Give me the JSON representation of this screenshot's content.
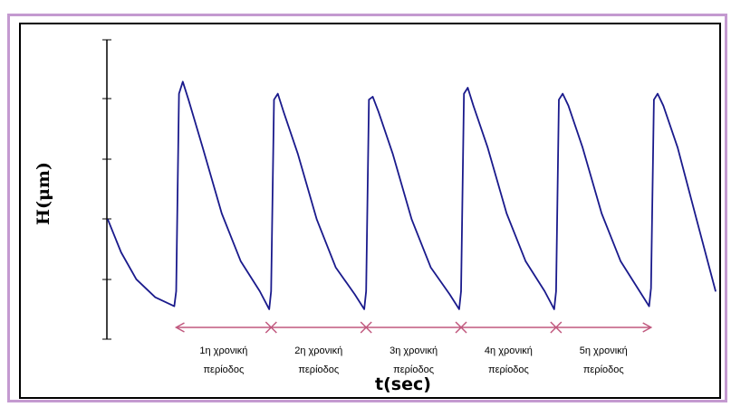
{
  "chart_data": {
    "type": "line",
    "title": "",
    "xlabel": "t(sec)",
    "ylabel": "Η(μm)",
    "line_color": "#1a1a8c",
    "arrow_color": "#c0587e",
    "x_unit": "periods",
    "xlim": [
      0,
      6.4
    ],
    "ylim": [
      0,
      5
    ],
    "grid": false,
    "series": [
      {
        "x": [
          0,
          0.14,
          0.3,
          0.5,
          0.7,
          0.72,
          0.75,
          0.79,
          0.85,
          1.0,
          1.2,
          1.4,
          1.6,
          1.7,
          1.72,
          1.75,
          1.79,
          1.85,
          2.0,
          2.2,
          2.4,
          2.6,
          2.7,
          2.72,
          2.75,
          2.79,
          2.85,
          3.0,
          3.2,
          3.4,
          3.6,
          3.7,
          3.72,
          3.75,
          3.79,
          3.85,
          4.0,
          4.2,
          4.4,
          4.6,
          4.7,
          4.72,
          4.75,
          4.79,
          4.85,
          5.0,
          5.2,
          5.4,
          5.6,
          5.7,
          5.72,
          5.75,
          5.79,
          5.85,
          6.0,
          6.2,
          6.4
        ],
        "values": [
          2.0,
          1.45,
          1.0,
          0.7,
          0.55,
          0.8,
          4.1,
          4.3,
          4.0,
          3.2,
          2.1,
          1.3,
          0.8,
          0.5,
          0.8,
          4.0,
          4.1,
          3.8,
          3.1,
          2.0,
          1.2,
          0.75,
          0.5,
          0.8,
          4.0,
          4.05,
          3.8,
          3.1,
          2.0,
          1.2,
          0.75,
          0.5,
          0.8,
          4.1,
          4.2,
          3.9,
          3.2,
          2.1,
          1.3,
          0.8,
          0.5,
          0.8,
          4.0,
          4.1,
          3.9,
          3.2,
          2.1,
          1.3,
          0.8,
          0.55,
          0.85,
          4.0,
          4.1,
          3.9,
          3.2,
          2.0,
          0.8
        ]
      }
    ],
    "periods": [
      {
        "line1": "1η χρονική",
        "line2": "περίοδος"
      },
      {
        "line1": "2η χρονική",
        "line2": "περίοδος"
      },
      {
        "line1": "3η χρονική",
        "line2": "περίοδος"
      },
      {
        "line1": "4η χρονική",
        "line2": "περίοδος"
      },
      {
        "line1": "5η χρονική",
        "line2": "περίοδος"
      }
    ]
  }
}
